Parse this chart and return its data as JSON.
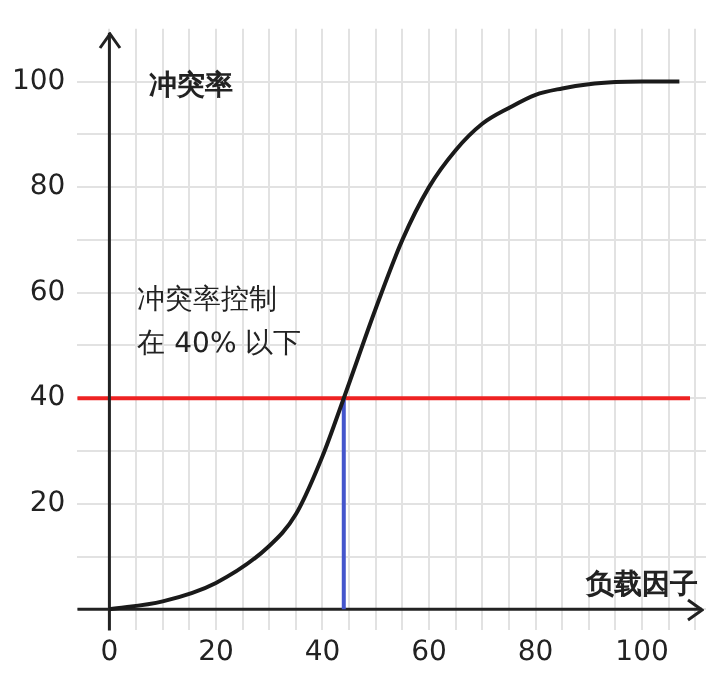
{
  "chart_data": {
    "type": "line",
    "xlabel": "负载因子",
    "ylabel": "冲突率",
    "xlim": [
      -6,
      112
    ],
    "ylim": [
      -4,
      110
    ],
    "xticks": [
      0,
      {
        "value": 5,
        "label": null
      },
      {
        "value": 10,
        "label": null
      },
      {
        "value": 15,
        "label": null
      },
      20,
      {
        "value": 25,
        "label": null
      },
      {
        "value": 30,
        "label": null
      },
      {
        "value": 35,
        "label": null
      },
      40,
      {
        "value": 45,
        "label": null
      },
      {
        "value": 50,
        "label": null
      },
      {
        "value": 55,
        "label": null
      },
      60,
      {
        "value": 65,
        "label": null
      },
      {
        "value": 70,
        "label": null
      },
      {
        "value": 75,
        "label": null
      },
      80,
      {
        "value": 85,
        "label": null
      },
      {
        "value": 90,
        "label": null
      },
      {
        "value": 95,
        "label": null
      },
      100,
      {
        "value": 105,
        "label": null
      },
      {
        "value": 110,
        "label": null
      }
    ],
    "yticks": [
      {
        "value": 0,
        "label": null
      },
      {
        "value": 10,
        "label": null
      },
      20,
      {
        "value": 30,
        "label": null
      },
      40,
      {
        "value": 50,
        "label": null
      },
      60,
      {
        "value": 70,
        "label": null
      },
      80,
      {
        "value": 90,
        "label": null
      },
      100
    ],
    "series": [
      {
        "color": "#1a1a1a",
        "x": [
          0,
          10,
          20,
          30,
          35,
          40,
          44,
          50,
          55,
          60,
          65,
          70,
          75,
          80,
          85,
          90,
          95,
          100,
          107
        ],
        "values": [
          0,
          1.5,
          5,
          12,
          18,
          29,
          40,
          57,
          70,
          80,
          87,
          92,
          95,
          97.5,
          98.7,
          99.5,
          99.9,
          100,
          100
        ]
      },
      {
        "color": "#4455cc",
        "x": [
          44,
          44
        ],
        "values": [
          0,
          40
        ]
      }
    ],
    "ref_lines": [
      {
        "axis": "y",
        "value": 40,
        "color": "#ee2222"
      }
    ],
    "annotations": [
      "冲突率控制",
      "在 40% 以下"
    ],
    "grid": true,
    "legend": false,
    "marker": "none",
    "line_style": "solid"
  }
}
